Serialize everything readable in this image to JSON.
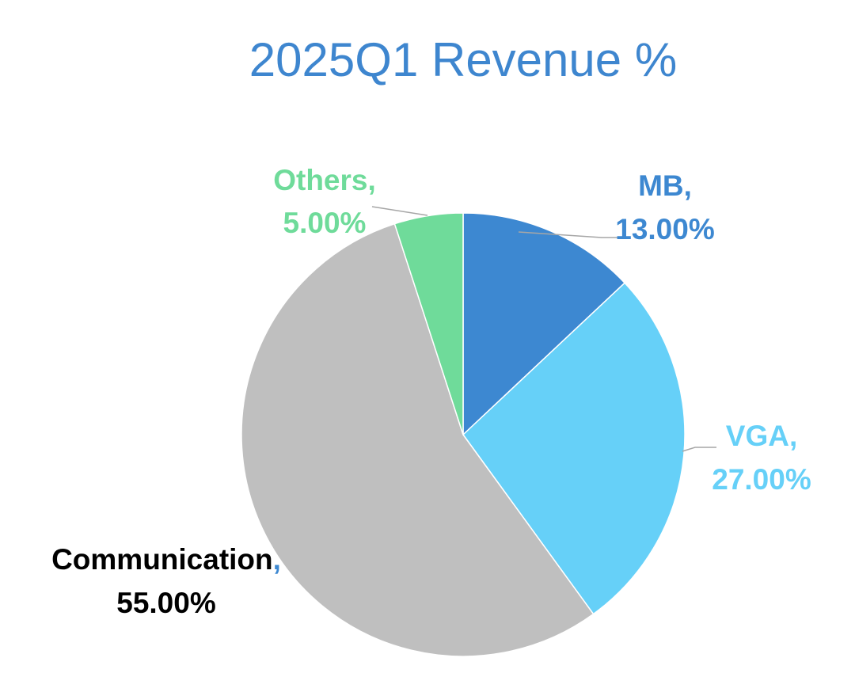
{
  "chart_data": {
    "type": "pie",
    "title": "2025Q1 Revenue %",
    "title_color": "#3e86cf",
    "start_angle_deg": 0,
    "direction": "clockwise",
    "slices": [
      {
        "name": "MB",
        "value": 13.0,
        "label_name": "MB,",
        "label_value": "13.00%",
        "color": "#3d88d1",
        "label_color": "#3d88d1",
        "comma_color": "#3d88d1"
      },
      {
        "name": "VGA",
        "value": 27.0,
        "label_name": "VGA,",
        "label_value": "27.00%",
        "color": "#66d0f8",
        "label_color": "#66d0f8",
        "comma_color": "#66d0f8"
      },
      {
        "name": "Communication",
        "value": 55.0,
        "label_name": "Communication",
        "label_comma": ",",
        "label_value": "55.00%",
        "color": "#bfbfbf",
        "label_color": "#000000",
        "comma_color": "#3d88d1"
      },
      {
        "name": "Others",
        "value": 5.0,
        "label_name": "Others,",
        "label_value": "5.00%",
        "color": "#6fdb9a",
        "label_color": "#6fdb9a",
        "comma_color": "#6fdb9a"
      }
    ],
    "leader_line_color": "#a6a6a6"
  }
}
